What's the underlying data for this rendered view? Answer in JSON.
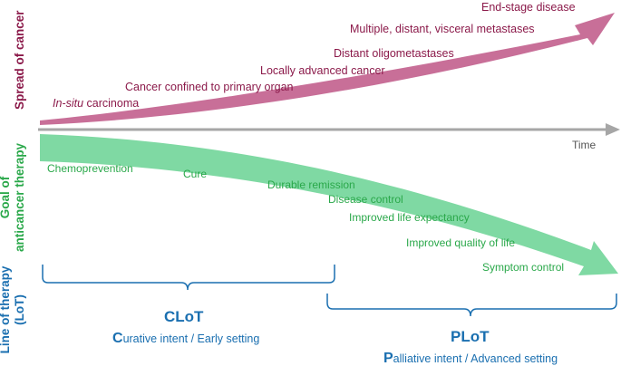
{
  "colors": {
    "spread": "#c86f98",
    "spread_text": "#8b1a4a",
    "goal": "#7fd9a3",
    "goal_text": "#2aa84a",
    "time_axis": "#a6a6a6",
    "lot": "#1a6fb0"
  },
  "side_titles": {
    "spread": "Spread of cancer",
    "goal_line1": "Goal of",
    "goal_line2": "anticancer therapy",
    "lot_line1": "Line of therapy",
    "lot_line2": "(LoT)"
  },
  "time_label": "Time",
  "spread_stages": {
    "in_situ_italic": "In-situ",
    "in_situ_rest": " carcinoma",
    "confined": "Cancer confined to primary organ",
    "locally_advanced": "Locally advanced cancer",
    "oligometastases": "Distant oligometastases",
    "multiple": "Multiple, distant, visceral metastases",
    "end_stage": "End-stage disease"
  },
  "goals": {
    "chemoprevention": "Chemoprevention",
    "cure": "Cure",
    "durable_remission": "Durable remission",
    "disease_control": "Disease control",
    "life_expectancy": "Improved life expectancy",
    "quality_of_life": "Improved quality of life",
    "symptom_control": "Symptom  control"
  },
  "clot": {
    "title": "CLoT",
    "cap": "C",
    "rest": "urative intent / Early setting"
  },
  "plot": {
    "title": "PLoT",
    "cap": "P",
    "rest": "alliative intent / Advanced setting"
  }
}
